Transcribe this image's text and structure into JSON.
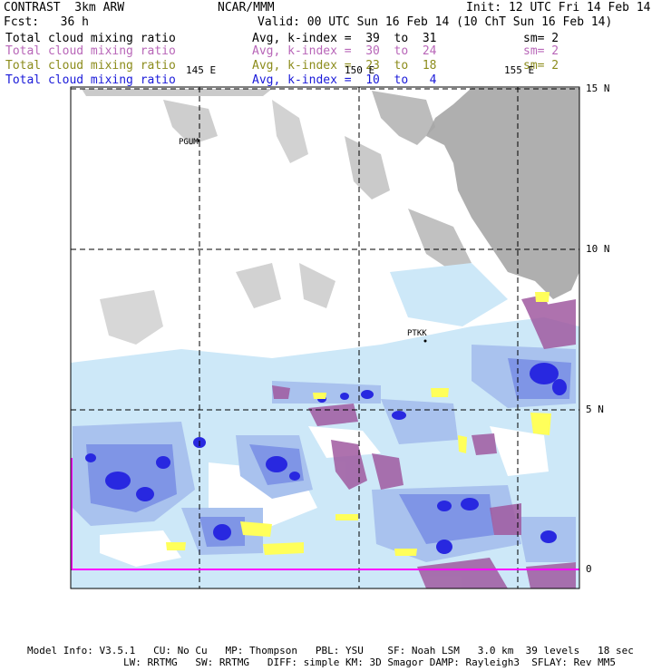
{
  "header": {
    "model": "CONTRAST  3km ARW",
    "org": "NCAR/MMM",
    "init": "Init: 12 UTC Fri 14 Feb 14",
    "fcst": "Fcst:   36 h",
    "valid": "Valid: 00 UTC Sun 16 Feb 14 (10 ChT Sun 16 Feb 14)"
  },
  "fields": [
    {
      "name": "Total cloud mixing ratio",
      "avg": "Avg, k-index =  39  to  31",
      "sm": "sm= 2",
      "color": "#000000"
    },
    {
      "name": "Total cloud mixing ratio",
      "avg": "Avg, k-index =  30  to  24",
      "sm": "sm= 2",
      "color": "#b866b8"
    },
    {
      "name": "Total cloud mixing ratio",
      "avg": "Avg, k-index =  23  to  18",
      "sm": "sm= 2",
      "color": "#8c8c1c"
    },
    {
      "name": "Total cloud mixing ratio",
      "avg": "Avg, k-index =  10  to   4",
      "sm": "",
      "color": "#1a1ad9"
    }
  ],
  "lon_labels": [
    "145 E",
    "150 E",
    "155 E"
  ],
  "lat_labels": [
    "15 N",
    "10 N",
    "5 N",
    "0"
  ],
  "stations": [
    "PGUM",
    "PTKK"
  ],
  "colors": {
    "high_cloud": "#a6a6a6",
    "mid_cloud": "#a05aa0",
    "low_cloud": "#ffff5a",
    "shallow_light": "#cde8f8",
    "shallow_mid": "#a9c2ee",
    "shallow_dark": "#7f95e6",
    "convective": "#2828e0",
    "boundary": "#ff00ff"
  },
  "footer": {
    "line1": "Model Info: V3.5.1   CU: No Cu   MP: Thompson   PBL: YSU    SF: Noah LSM   3.0 km  39 levels   18 sec",
    "line2": "                LW: RRTMG   SW: RRTMG   DIFF: simple KM: 3D Smagor DAMP: Rayleigh3  SFLAY: Rev MM5"
  }
}
